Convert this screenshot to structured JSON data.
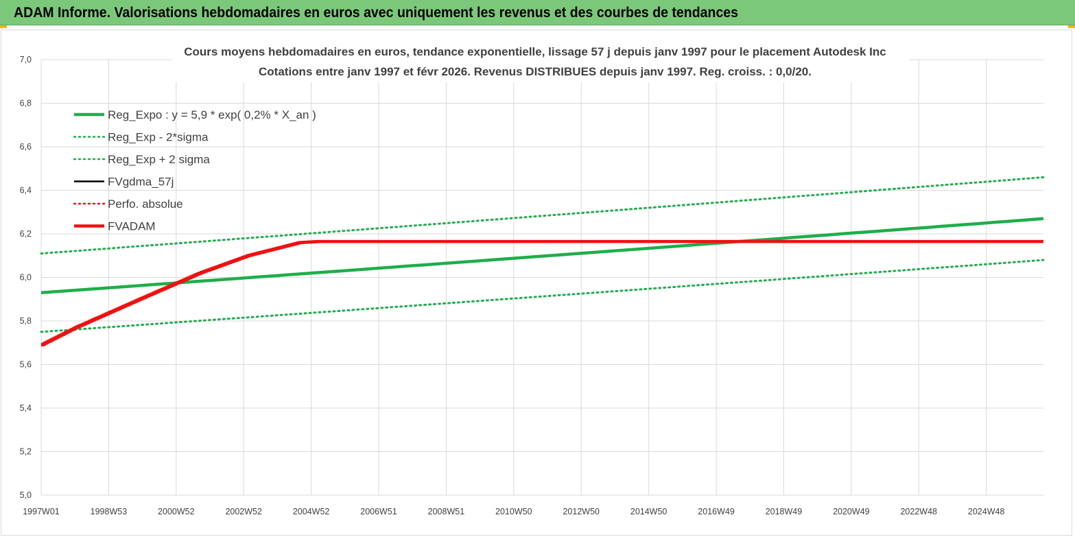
{
  "header": {
    "title": "ADAM Informe. Valorisations hebdomadaires en euros avec uniquement les revenus et des courbes de tendances"
  },
  "colors": {
    "banner": "#7cc87a",
    "green": "#1fae4b",
    "red": "#ee1111",
    "black": "#000000",
    "grid": "#d9d9d9"
  },
  "chart_data": {
    "type": "line",
    "title_lines": [
      "Cours moyens hebdomadaires en euros, tendance exponentielle, lissage 57 j depuis janv 1997 pour le placement Autodesk Inc",
      "Cotations entre janv 1997 et févr 2026. Revenus DISTRIBUES depuis janv 1997. Reg. croiss. : 0,0/20."
    ],
    "ylim": [
      5.0,
      7.0
    ],
    "yticks": [
      "7,0",
      "6,8",
      "6,6",
      "6,4",
      "6,2",
      "6,0",
      "5,8",
      "5,6",
      "5,4",
      "5,2",
      "5,0"
    ],
    "xlim_years": [
      1997.0,
      2026.1
    ],
    "xtick_labels": [
      "1997W01",
      "1998W53",
      "2000W52",
      "2002W52",
      "2004W52",
      "2006W51",
      "2008W51",
      "2010W50",
      "2012W50",
      "2014W50",
      "2016W49",
      "2018W49",
      "2020W49",
      "2022W48",
      "2024W48"
    ],
    "grid": true,
    "legend_position": "top-left",
    "series": [
      {
        "name": "Reg_Expo : y = 5,9 * exp( 0,2% *  X_an )",
        "style": "solid-thick",
        "color": "#1fae4b",
        "x": [
          1997.0,
          2026.1
        ],
        "y": [
          5.93,
          6.27
        ]
      },
      {
        "name": "Reg_Exp - 2*sigma",
        "style": "dotted",
        "color": "#1fae4b",
        "x": [
          1997.0,
          2026.1
        ],
        "y": [
          5.75,
          6.08
        ]
      },
      {
        "name": "Reg_Exp + 2 sigma",
        "style": "dotted",
        "color": "#1fae4b",
        "x": [
          1997.0,
          2026.1
        ],
        "y": [
          6.11,
          6.46
        ]
      },
      {
        "name": "FVgdma_57j",
        "style": "solid",
        "color": "#000000",
        "x": [],
        "y": []
      },
      {
        "name": "Perfo. absolue",
        "style": "dotted",
        "color": "#ee1111",
        "x": [],
        "y": []
      },
      {
        "name": "FVADAM",
        "style": "solid-thick-stepped",
        "color": "#ee1111",
        "x": [
          1997.0,
          1998.0,
          2000.0,
          2001.6,
          2003.0,
          2004.5,
          2005.05,
          2026.1
        ],
        "y": [
          5.69,
          5.77,
          5.91,
          6.02,
          6.1,
          6.16,
          6.165,
          6.165
        ]
      }
    ]
  }
}
